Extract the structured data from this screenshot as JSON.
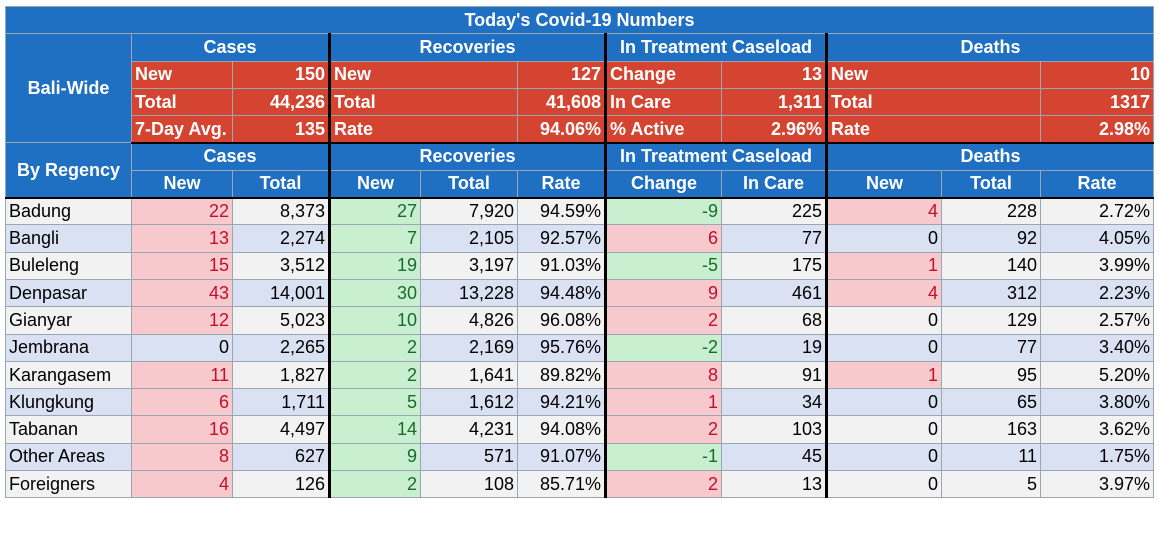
{
  "title": "Today's Covid-19 Numbers",
  "sections": {
    "bali_wide": "Bali-Wide",
    "by_regency": "By Regency",
    "cases": "Cases",
    "recoveries": "Recoveries",
    "treatment": "In Treatment Caseload",
    "deaths": "Deaths"
  },
  "summary": {
    "cases": [
      [
        "New",
        "150"
      ],
      [
        "Total",
        "44,236"
      ],
      [
        "7-Day Avg.",
        "135"
      ]
    ],
    "recoveries": [
      [
        "New",
        "127"
      ],
      [
        "Total",
        "41,608"
      ],
      [
        "Rate",
        "94.06%"
      ]
    ],
    "treatment": [
      [
        "Change",
        "13"
      ],
      [
        "In Care",
        "1,311"
      ],
      [
        "% Active",
        "2.96%"
      ]
    ],
    "deaths": [
      [
        "New",
        "10"
      ],
      [
        "Total",
        "1317"
      ],
      [
        "Rate",
        "2.98%"
      ]
    ]
  },
  "columns": {
    "new": "New",
    "total": "Total",
    "rate": "Rate",
    "change": "Change",
    "in_care": "In Care"
  },
  "rows": [
    {
      "name": "Badung",
      "c_new": "22",
      "c_total": "8,373",
      "r_new": "27",
      "r_total": "7,920",
      "r_rate": "94.59%",
      "t_change": "-9",
      "t_care": "225",
      "d_new": "4",
      "d_total": "228",
      "d_rate": "2.72%"
    },
    {
      "name": "Bangli",
      "c_new": "13",
      "c_total": "2,274",
      "r_new": "7",
      "r_total": "2,105",
      "r_rate": "92.57%",
      "t_change": "6",
      "t_care": "77",
      "d_new": "0",
      "d_total": "92",
      "d_rate": "4.05%"
    },
    {
      "name": "Buleleng",
      "c_new": "15",
      "c_total": "3,512",
      "r_new": "19",
      "r_total": "3,197",
      "r_rate": "91.03%",
      "t_change": "-5",
      "t_care": "175",
      "d_new": "1",
      "d_total": "140",
      "d_rate": "3.99%"
    },
    {
      "name": "Denpasar",
      "c_new": "43",
      "c_total": "14,001",
      "r_new": "30",
      "r_total": "13,228",
      "r_rate": "94.48%",
      "t_change": "9",
      "t_care": "461",
      "d_new": "4",
      "d_total": "312",
      "d_rate": "2.23%"
    },
    {
      "name": "Gianyar",
      "c_new": "12",
      "c_total": "5,023",
      "r_new": "10",
      "r_total": "4,826",
      "r_rate": "96.08%",
      "t_change": "2",
      "t_care": "68",
      "d_new": "0",
      "d_total": "129",
      "d_rate": "2.57%"
    },
    {
      "name": "Jembrana",
      "c_new": "0",
      "c_total": "2,265",
      "r_new": "2",
      "r_total": "2,169",
      "r_rate": "95.76%",
      "t_change": "-2",
      "t_care": "19",
      "d_new": "0",
      "d_total": "77",
      "d_rate": "3.40%"
    },
    {
      "name": "Karangasem",
      "c_new": "11",
      "c_total": "1,827",
      "r_new": "2",
      "r_total": "1,641",
      "r_rate": "89.82%",
      "t_change": "8",
      "t_care": "91",
      "d_new": "1",
      "d_total": "95",
      "d_rate": "5.20%"
    },
    {
      "name": "Klungkung",
      "c_new": "6",
      "c_total": "1,711",
      "r_new": "5",
      "r_total": "1,612",
      "r_rate": "94.21%",
      "t_change": "1",
      "t_care": "34",
      "d_new": "0",
      "d_total": "65",
      "d_rate": "3.80%"
    },
    {
      "name": "Tabanan",
      "c_new": "16",
      "c_total": "4,497",
      "r_new": "14",
      "r_total": "4,231",
      "r_rate": "94.08%",
      "t_change": "2",
      "t_care": "103",
      "d_new": "0",
      "d_total": "163",
      "d_rate": "3.62%"
    },
    {
      "name": "Other Areas",
      "c_new": "8",
      "c_total": "627",
      "r_new": "9",
      "r_total": "571",
      "r_rate": "91.07%",
      "t_change": "-1",
      "t_care": "45",
      "d_new": "0",
      "d_total": "11",
      "d_rate": "1.75%"
    },
    {
      "name": "Foreigners",
      "c_new": "4",
      "c_total": "126",
      "r_new": "2",
      "r_total": "108",
      "r_rate": "85.71%",
      "t_change": "2",
      "t_care": "13",
      "d_new": "0",
      "d_total": "5",
      "d_rate": "3.97%"
    }
  ],
  "colors": {
    "header_blue": "#1f6fc2",
    "summary_red": "#d44431",
    "increase_pink": "#f7c9cd",
    "decrease_green": "#c9efd1"
  }
}
